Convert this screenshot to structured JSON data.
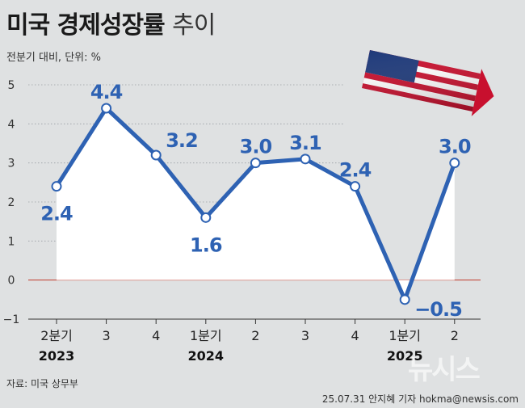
{
  "title": "미국 경제성장률",
  "title_sub": "추이",
  "unit_note": "전분기 대비, 단위: %",
  "source": "자료: 미국 상무부",
  "credit": "25.07.31 안지혜 기자 hokma@newsis.com",
  "watermark": "뉴시스",
  "colors": {
    "line": "#2e62b3",
    "zero_line": "#c0392b",
    "fill": "#ffffff",
    "background": "#dfe1e2"
  },
  "flag_icon": "us-flag-icon",
  "chart_data": {
    "type": "line",
    "title": "미국 경제성장률 추이",
    "xlabel": "",
    "ylabel": "",
    "categories": [
      "2분기",
      "3",
      "4",
      "1분기",
      "2",
      "3",
      "4",
      "1분기",
      "2"
    ],
    "year_labels": [
      "2023",
      "",
      "",
      "2024",
      "",
      "",
      "",
      "2025",
      ""
    ],
    "series": [
      {
        "values": [
          2.4,
          4.4,
          3.2,
          1.6,
          3.0,
          3.1,
          2.4,
          -0.5,
          3.0
        ]
      }
    ],
    "data_labels": [
      "2.4",
      "4.4",
      "3.2",
      "1.6",
      "3.0",
      "3.1",
      "2.4",
      "−0.5",
      "3.0"
    ],
    "yticks": [
      "5",
      "4",
      "3",
      "2",
      "1",
      "0",
      "−1"
    ],
    "ylim": [
      -1,
      5
    ],
    "grid": true
  }
}
